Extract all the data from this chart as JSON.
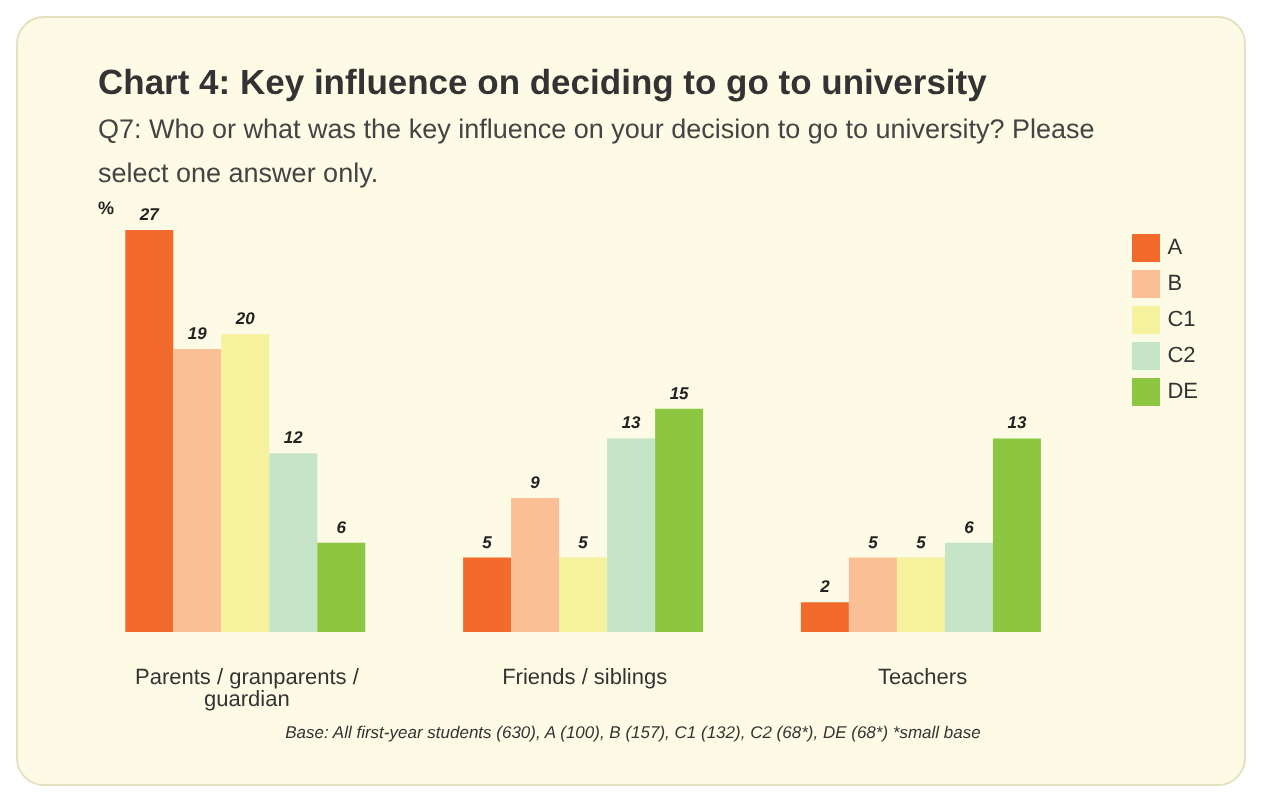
{
  "chart_data": {
    "type": "bar",
    "title": "Chart 4: Key influence on deciding to go to university",
    "subtitle": "Q7: Who or what was the key influence on your decision to go to university?  Please select one answer only.",
    "ylabel": "%",
    "categories": [
      "Parents / granparents / guardian",
      "Friends / siblings",
      "Teachers"
    ],
    "series": [
      {
        "name": "A",
        "color": "#f26b2c",
        "values": [
          27,
          5,
          2
        ]
      },
      {
        "name": "B",
        "color": "#fbbf95",
        "values": [
          19,
          9,
          5
        ]
      },
      {
        "name": "C1",
        "color": "#f5f19c",
        "values": [
          20,
          5,
          5
        ]
      },
      {
        "name": "C2",
        "color": "#c6e4c8",
        "values": [
          12,
          13,
          6
        ]
      },
      {
        "name": "DE",
        "color": "#8dc641",
        "values": [
          6,
          15,
          13
        ]
      }
    ],
    "data_labels": true,
    "legend": "top right",
    "grid": false,
    "annotations": [
      "Base: All first-year students (630), A (100), B (157), C1 (132), C2 (68*), DE (68*) *small base"
    ]
  }
}
